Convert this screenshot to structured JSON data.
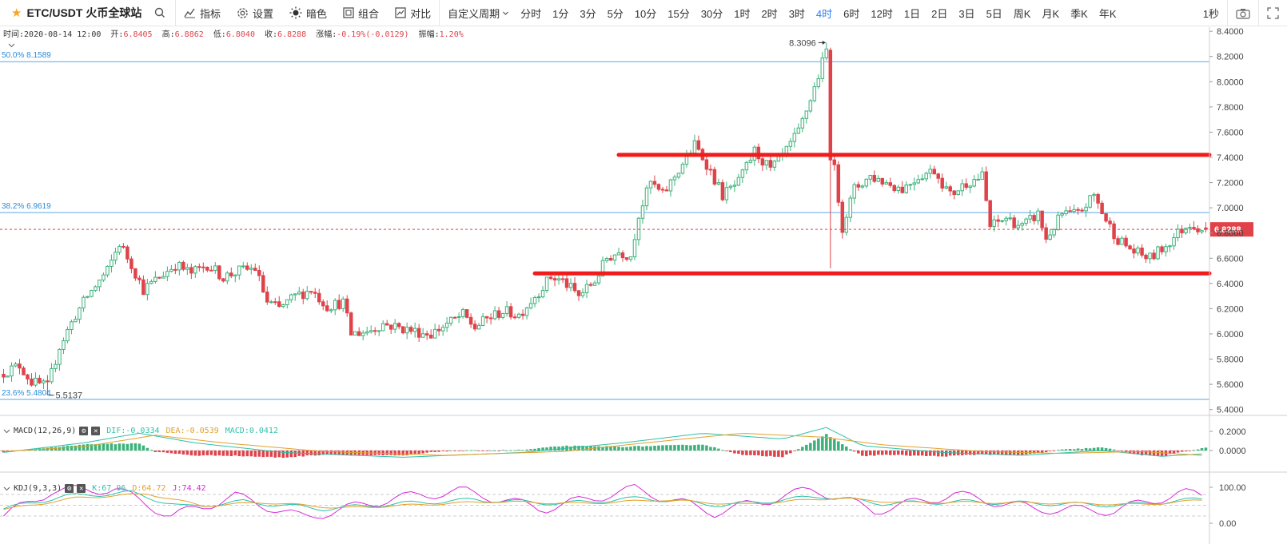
{
  "toolbar": {
    "symbol": "ETC/USDT 火币全球站",
    "indicators_label": "指标",
    "settings_label": "设置",
    "dark_label": "暗色",
    "combine_label": "组合",
    "compare_label": "对比",
    "custom_period_label": "自定义周期",
    "periods": [
      "分时",
      "1分",
      "3分",
      "5分",
      "10分",
      "15分",
      "30分",
      "1时",
      "2时",
      "3时",
      "4时",
      "6时",
      "12时",
      "1日",
      "2日",
      "3日",
      "5日",
      "周K",
      "月K",
      "季K",
      "年K"
    ],
    "active_period": "4时",
    "refresh_label": "1秒"
  },
  "ohlc_info": {
    "time_label": "时间:",
    "time": "2020-08-14 12:00",
    "open_label": "开:",
    "open": "6.8405",
    "high_label": "高:",
    "high": "6.8862",
    "low_label": "低:",
    "low": "6.8040",
    "close_label": "收:",
    "close": "6.8288",
    "change_label": "涨幅:",
    "change": "-0.19%(-0.0129)",
    "amp_label": "振幅:",
    "amp": "1.20%"
  },
  "fib_levels": [
    {
      "label": "50.0% 8.1589",
      "price": 8.1589
    },
    {
      "label": "38.2% 6.9619",
      "price": 6.9619
    },
    {
      "label": "23.6% 5.4804",
      "price": 5.4804
    }
  ],
  "annotations": {
    "max_label": "8.3096",
    "min_label": "5.5137",
    "last_price_label": "6.8288"
  },
  "macd": {
    "name": "MACD(12,26,9)",
    "dif_label": "DIF:-0.0334",
    "dea_label": "DEA:-0.0539",
    "macd_label": "MACD:0.0412",
    "dif_color": "#2fc1a8",
    "dea_color": "#e3a12b",
    "macd_color": "#2fc1a8",
    "ticks": [
      "0.2000",
      "0.0000"
    ]
  },
  "kdj": {
    "name": "KDJ(9,3,3)",
    "k_label": "K:67.96",
    "d_label": "D:64.72",
    "j_label": "J:74.42",
    "k_color": "#2fc1a8",
    "d_color": "#e3a12b",
    "j_color": "#d62ad8",
    "ticks": [
      "100.00",
      "0.00"
    ]
  },
  "colors": {
    "up": "#3bb27a",
    "down": "#e0424a",
    "fib_line": "#5aa6e6",
    "hline": "#f01b1b",
    "active": "#2f7ff0"
  },
  "chart_data": {
    "type": "candlestick",
    "pair": "ETC/USDT",
    "interval": "4时",
    "y_ticks": [
      "8.4000",
      "8.2000",
      "8.0000",
      "7.8000",
      "7.6000",
      "7.4000",
      "7.2000",
      "7.0000",
      "6.8000",
      "6.6000",
      "6.4000",
      "6.2000",
      "6.0000",
      "5.8000",
      "5.6000",
      "5.4000"
    ],
    "ylim": [
      5.36,
      8.42
    ],
    "last_price": 6.8288,
    "max_price": 8.3096,
    "min_price": 5.5137,
    "support_line": 6.48,
    "resistance_line": 7.42,
    "path": [
      [
        0,
        5.68
      ],
      [
        5,
        5.75
      ],
      [
        8,
        5.62
      ],
      [
        12,
        5.58
      ],
      [
        15,
        5.9
      ],
      [
        19,
        6.15
      ],
      [
        22,
        6.3
      ],
      [
        27,
        6.5
      ],
      [
        30,
        6.72
      ],
      [
        33,
        6.55
      ],
      [
        36,
        6.35
      ],
      [
        40,
        6.45
      ],
      [
        44,
        6.55
      ],
      [
        48,
        6.48
      ],
      [
        52,
        6.55
      ],
      [
        56,
        6.45
      ],
      [
        60,
        6.5
      ],
      [
        64,
        6.52
      ],
      [
        67,
        6.25
      ],
      [
        70,
        6.2
      ],
      [
        74,
        6.3
      ],
      [
        78,
        6.35
      ],
      [
        82,
        6.22
      ],
      [
        86,
        6.25
      ],
      [
        88,
        6.0
      ],
      [
        92,
        6.02
      ],
      [
        96,
        6.08
      ],
      [
        100,
        6.05
      ],
      [
        104,
        6.02
      ],
      [
        108,
        6.0
      ],
      [
        112,
        6.08
      ],
      [
        116,
        6.15
      ],
      [
        119,
        6.05
      ],
      [
        122,
        6.12
      ],
      [
        126,
        6.18
      ],
      [
        130,
        6.15
      ],
      [
        134,
        6.3
      ],
      [
        138,
        6.45
      ],
      [
        141,
        6.42
      ],
      [
        145,
        6.3
      ],
      [
        149,
        6.42
      ],
      [
        152,
        6.6
      ],
      [
        155,
        6.65
      ],
      [
        158,
        6.62
      ],
      [
        160,
        6.95
      ],
      [
        163,
        7.2
      ],
      [
        166,
        7.1
      ],
      [
        170,
        7.3
      ],
      [
        174,
        7.5
      ],
      [
        177,
        7.35
      ],
      [
        181,
        7.1
      ],
      [
        185,
        7.2
      ],
      [
        189,
        7.45
      ],
      [
        193,
        7.3
      ],
      [
        197,
        7.45
      ],
      [
        200,
        7.6
      ],
      [
        204,
        7.95
      ],
      [
        207,
        8.25
      ],
      [
        208,
        7.45
      ],
      [
        209,
        7.3
      ],
      [
        211,
        6.85
      ],
      [
        214,
        7.15
      ],
      [
        218,
        7.25
      ],
      [
        222,
        7.2
      ],
      [
        226,
        7.15
      ],
      [
        230,
        7.25
      ],
      [
        234,
        7.3
      ],
      [
        238,
        7.1
      ],
      [
        242,
        7.2
      ],
      [
        246,
        7.25
      ],
      [
        248,
        6.85
      ],
      [
        252,
        6.92
      ],
      [
        256,
        6.85
      ],
      [
        260,
        6.95
      ],
      [
        262,
        6.75
      ],
      [
        266,
        6.95
      ],
      [
        270,
        6.95
      ],
      [
        274,
        7.1
      ],
      [
        277,
        6.9
      ],
      [
        280,
        6.75
      ],
      [
        284,
        6.65
      ],
      [
        288,
        6.6
      ],
      [
        292,
        6.7
      ],
      [
        295,
        6.8
      ],
      [
        298,
        6.88
      ],
      [
        301,
        6.83
      ]
    ],
    "macd_lines": {
      "dif": [
        [
          0,
          -0.02
        ],
        [
          20,
          0.08
        ],
        [
          34,
          0.18
        ],
        [
          48,
          0.08
        ],
        [
          70,
          -0.02
        ],
        [
          100,
          -0.07
        ],
        [
          130,
          -0.02
        ],
        [
          155,
          0.08
        ],
        [
          175,
          0.18
        ],
        [
          195,
          0.12
        ],
        [
          206,
          0.24
        ],
        [
          215,
          0.05
        ],
        [
          235,
          -0.02
        ],
        [
          255,
          -0.05
        ],
        [
          275,
          0.0
        ],
        [
          290,
          -0.06
        ],
        [
          301,
          -0.0334
        ]
      ],
      "dea": [
        [
          0,
          -0.01
        ],
        [
          20,
          0.04
        ],
        [
          38,
          0.16
        ],
        [
          55,
          0.08
        ],
        [
          80,
          -0.01
        ],
        [
          110,
          -0.05
        ],
        [
          140,
          -0.01
        ],
        [
          170,
          0.12
        ],
        [
          185,
          0.18
        ],
        [
          205,
          0.14
        ],
        [
          220,
          0.06
        ],
        [
          245,
          -0.01
        ],
        [
          265,
          -0.03
        ],
        [
          285,
          -0.01
        ],
        [
          301,
          -0.0539
        ]
      ]
    },
    "kdj_lines": {
      "k": [
        [
          0,
          40
        ],
        [
          15,
          75
        ],
        [
          32,
          85
        ],
        [
          45,
          45
        ],
        [
          60,
          60
        ],
        [
          80,
          40
        ],
        [
          100,
          55
        ],
        [
          118,
          65
        ],
        [
          140,
          55
        ],
        [
          160,
          70
        ],
        [
          180,
          50
        ],
        [
          205,
          75
        ],
        [
          220,
          55
        ],
        [
          240,
          60
        ],
        [
          260,
          55
        ],
        [
          280,
          50
        ],
        [
          301,
          67.96
        ]
      ],
      "d": [
        [
          0,
          38
        ],
        [
          18,
          70
        ],
        [
          36,
          82
        ],
        [
          50,
          48
        ],
        [
          65,
          58
        ],
        [
          85,
          42
        ],
        [
          105,
          52
        ],
        [
          122,
          60
        ],
        [
          145,
          55
        ],
        [
          165,
          65
        ],
        [
          185,
          52
        ],
        [
          208,
          70
        ],
        [
          225,
          58
        ],
        [
          245,
          58
        ],
        [
          265,
          56
        ],
        [
          285,
          52
        ],
        [
          301,
          64.72
        ]
      ],
      "j": [
        [
          0,
          20
        ],
        [
          12,
          90
        ],
        [
          28,
          95
        ],
        [
          42,
          20
        ],
        [
          58,
          75
        ],
        [
          75,
          15
        ],
        [
          98,
          70
        ],
        [
          115,
          90
        ],
        [
          135,
          40
        ],
        [
          158,
          95
        ],
        [
          178,
          30
        ],
        [
          203,
          95
        ],
        [
          218,
          35
        ],
        [
          238,
          80
        ],
        [
          258,
          40
        ],
        [
          278,
          35
        ],
        [
          295,
          85
        ],
        [
          301,
          74.42
        ]
      ]
    }
  }
}
